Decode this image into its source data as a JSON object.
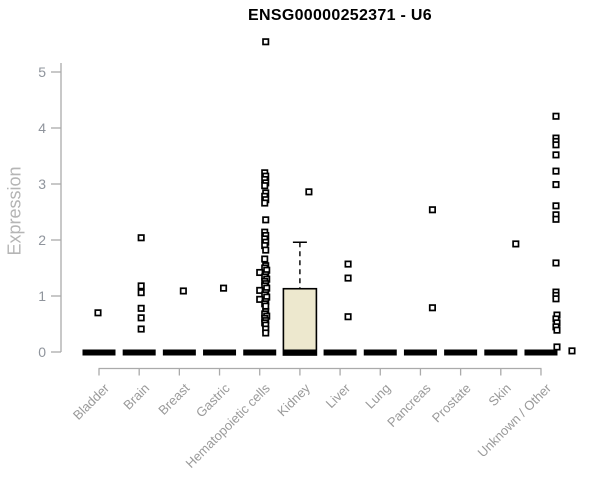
{
  "chart_data": {
    "type": "box",
    "title": "ENSG00000252371 - U6",
    "ylabel": "Expression",
    "xlabel": "",
    "ylim": [
      0,
      5
    ],
    "yticks": [
      0,
      1,
      2,
      3,
      4,
      5
    ],
    "grid": false,
    "legend": "none",
    "marker": "open-square",
    "colors": {
      "box_fill": "#ede8ce",
      "box_stroke": "#000000",
      "collapsed_bar": "#000000",
      "whisker": "#000000",
      "point_stroke": "#000000",
      "point_fill": "#ffffff",
      "axis": "#aaaaaa",
      "tick_text": "#8f949c",
      "category_text": "#9a9a9a",
      "title_text": "#000000",
      "axis_title_text": "#b5b5b5"
    },
    "categories": [
      "Bladder",
      "Brain",
      "Breast",
      "Gastric",
      "Hematopoietic cells",
      "Kidney",
      "Liver",
      "Lung",
      "Pancreas",
      "Prostate",
      "Skin",
      "Unknown / Other"
    ],
    "boxes": [
      {
        "q1": 0,
        "median": 0,
        "q3": 0,
        "whisker_high": 0
      },
      {
        "q1": 0,
        "median": 0,
        "q3": 0,
        "whisker_high": 0
      },
      {
        "q1": 0,
        "median": 0,
        "q3": 0,
        "whisker_high": 0
      },
      {
        "q1": 0,
        "median": 0,
        "q3": 0,
        "whisker_high": 0
      },
      {
        "q1": 0,
        "median": 0,
        "q3": 0,
        "whisker_high": 0
      },
      {
        "q1": 0,
        "median": 0,
        "q3": 1.13,
        "whisker_high": 1.96
      },
      {
        "q1": 0,
        "median": 0,
        "q3": 0,
        "whisker_high": 0
      },
      {
        "q1": 0,
        "median": 0,
        "q3": 0,
        "whisker_high": 0
      },
      {
        "q1": 0,
        "median": 0,
        "q3": 0,
        "whisker_high": 0
      },
      {
        "q1": 0,
        "median": 0,
        "q3": 0,
        "whisker_high": 0
      },
      {
        "q1": 0,
        "median": 0,
        "q3": 0,
        "whisker_high": 0
      },
      {
        "q1": 0,
        "median": 0,
        "q3": 0,
        "whisker_high": 0
      }
    ],
    "points": [
      [
        [
          0.7,
          -1
        ]
      ],
      [
        [
          2.04,
          2
        ],
        [
          1.18,
          2
        ],
        [
          1.06,
          2
        ],
        [
          0.78,
          2
        ],
        [
          0.61,
          2
        ],
        [
          0.41,
          2
        ]
      ],
      [
        [
          1.09,
          4
        ]
      ],
      [
        [
          1.14,
          4
        ]
      ],
      [
        [
          5.54,
          6
        ],
        [
          3.2,
          5
        ],
        [
          3.14,
          6
        ],
        [
          3.08,
          5
        ],
        [
          3.02,
          6
        ],
        [
          2.97,
          5
        ],
        [
          2.84,
          6
        ],
        [
          2.78,
          5
        ],
        [
          2.72,
          6
        ],
        [
          2.66,
          5
        ],
        [
          2.36,
          6
        ],
        [
          2.14,
          5
        ],
        [
          2.08,
          6
        ],
        [
          2.02,
          5
        ],
        [
          1.96,
          6
        ],
        [
          1.9,
          5
        ],
        [
          1.82,
          6
        ],
        [
          1.66,
          5
        ],
        [
          1.54,
          6
        ],
        [
          1.5,
          5
        ],
        [
          1.46,
          7
        ],
        [
          1.42,
          0
        ],
        [
          1.38,
          6
        ],
        [
          1.34,
          5
        ],
        [
          1.3,
          7
        ],
        [
          1.26,
          5
        ],
        [
          1.22,
          6
        ],
        [
          1.18,
          5
        ],
        [
          1.14,
          7
        ],
        [
          1.1,
          0
        ],
        [
          1.06,
          6
        ],
        [
          1.02,
          5
        ],
        [
          0.98,
          7
        ],
        [
          0.94,
          0
        ],
        [
          0.9,
          6
        ],
        [
          0.86,
          5
        ],
        [
          0.82,
          6
        ],
        [
          0.72,
          6
        ],
        [
          0.68,
          5
        ],
        [
          0.64,
          7
        ],
        [
          0.6,
          5
        ],
        [
          0.56,
          6
        ],
        [
          0.52,
          5
        ],
        [
          0.48,
          6
        ],
        [
          0.41,
          6
        ],
        [
          0.34,
          6
        ]
      ],
      [
        [
          2.86,
          9
        ]
      ],
      [
        [
          1.57,
          8
        ],
        [
          1.32,
          8
        ],
        [
          0.63,
          8
        ]
      ],
      [],
      [
        [
          2.54,
          12
        ],
        [
          0.79,
          12
        ]
      ],
      [],
      [
        [
          1.93,
          15
        ]
      ],
      [
        [
          4.21,
          15
        ],
        [
          3.82,
          15
        ],
        [
          3.76,
          15
        ],
        [
          3.7,
          15
        ],
        [
          3.52,
          15
        ],
        [
          3.23,
          15
        ],
        [
          2.99,
          15
        ],
        [
          2.61,
          15
        ],
        [
          2.45,
          15
        ],
        [
          2.37,
          15
        ],
        [
          1.59,
          15
        ],
        [
          1.07,
          15
        ],
        [
          1.01,
          15
        ],
        [
          0.95,
          15
        ],
        [
          0.66,
          16
        ],
        [
          0.59,
          15
        ],
        [
          0.52,
          16
        ],
        [
          0.45,
          15
        ],
        [
          0.39,
          16
        ],
        [
          0.09,
          16
        ],
        [
          0.02,
          31
        ]
      ]
    ]
  }
}
